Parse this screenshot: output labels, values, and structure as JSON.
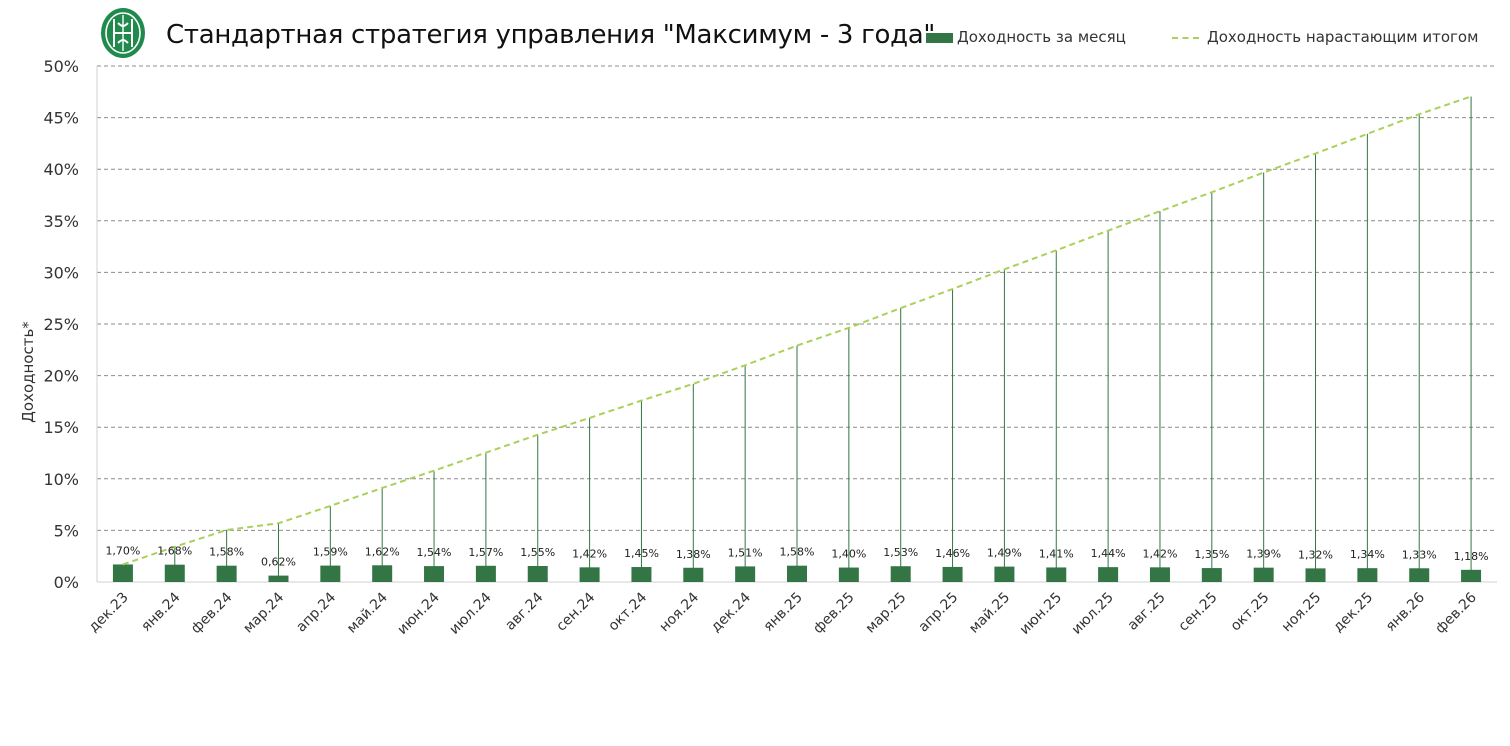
{
  "colors": {
    "bar": "#337544",
    "cumulative_line": "#a9d15a",
    "drop_line": "#337544",
    "grid": "#8c8c8c",
    "logo": "#1f8a4c"
  },
  "logo": {
    "icon": "company-logo-emblem"
  },
  "chart_data": {
    "type": "bar",
    "title": "Стандартная стратегия управления \"Максимум - 3 года\"",
    "ylabel": "Доходность*",
    "xlabel": "",
    "ylim": [
      0,
      50
    ],
    "y_ticks": [
      0,
      5,
      10,
      15,
      20,
      25,
      30,
      35,
      40,
      45,
      50
    ],
    "y_tick_labels": [
      "0%",
      "5%",
      "10%",
      "15%",
      "20%",
      "25%",
      "30%",
      "35%",
      "40%",
      "45%",
      "50%"
    ],
    "grid": true,
    "legend_position": "top-right",
    "categories": [
      "дек.23",
      "янв.24",
      "фев.24",
      "мар.24",
      "апр.24",
      "май.24",
      "июн.24",
      "июл.24",
      "авг.24",
      "сен.24",
      "окт.24",
      "ноя.24",
      "дек.24",
      "янв.25",
      "фев.25",
      "мар.25",
      "апр.25",
      "май.25",
      "июн.25",
      "июл.25",
      "авг.25",
      "сен.25",
      "окт.25",
      "ноя.25",
      "дек.25",
      "янв.26",
      "фев.26"
    ],
    "series": [
      {
        "name": "Доходность за месяц",
        "type": "bar",
        "values": [
          1.7,
          1.68,
          1.58,
          0.62,
          1.59,
          1.62,
          1.54,
          1.57,
          1.55,
          1.42,
          1.45,
          1.38,
          1.51,
          1.58,
          1.4,
          1.53,
          1.46,
          1.49,
          1.41,
          1.44,
          1.42,
          1.35,
          1.39,
          1.32,
          1.34,
          1.33,
          1.18
        ],
        "labels": [
          "1,70%",
          "1,68%",
          "1,58%",
          "0,62%",
          "1,59%",
          "1,62%",
          "1,54%",
          "1,57%",
          "1,55%",
          "1,42%",
          "1,45%",
          "1,38%",
          "1,51%",
          "1,58%",
          "1,40%",
          "1,53%",
          "1,46%",
          "1,49%",
          "1,41%",
          "1,44%",
          "1,42%",
          "1,35%",
          "1,39%",
          "1,32%",
          "1,34%",
          "1,33%",
          "1,18%"
        ]
      },
      {
        "name": "Доходность нарастающим итогом",
        "type": "line",
        "style": "dashed",
        "values": [
          1.7,
          3.41,
          5.04,
          5.69,
          7.37,
          9.11,
          10.79,
          12.53,
          14.27,
          15.9,
          17.58,
          19.2,
          21.0,
          22.91,
          24.63,
          26.54,
          28.39,
          30.3,
          32.14,
          34.04,
          35.93,
          37.77,
          39.68,
          41.52,
          43.42,
          45.33,
          47.05
        ]
      }
    ]
  }
}
